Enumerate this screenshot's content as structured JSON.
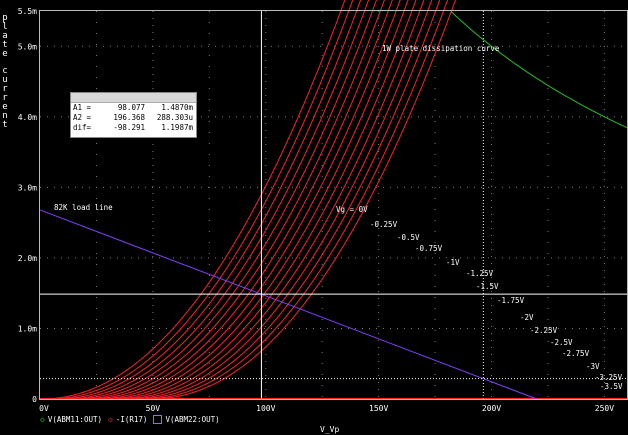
{
  "chart_data": {
    "type": "line",
    "xlabel": "V_Vp",
    "ylabel": "plate current",
    "xlim": [
      0,
      260
    ],
    "ylim": [
      0,
      5.5
    ],
    "y_unit": "mA",
    "x_ticks": [
      "0V",
      "50V",
      "100V",
      "150V",
      "200V",
      "250V"
    ],
    "y_ticks": [
      "0",
      "1.0m",
      "2.0m",
      "3.0m",
      "4.0m",
      "5.0m",
      "5.5m"
    ],
    "grid": "dotted",
    "curve_params": {
      "k": 0.0001995,
      "exp": 2.09,
      "vg_scale": 14
    },
    "grid_curves": [
      {
        "vg": "Vg = 0V",
        "vg_value": 0
      },
      {
        "vg": "-0.25V",
        "vg_value": -0.25
      },
      {
        "vg": "-0.5V",
        "vg_value": -0.5
      },
      {
        "vg": "-0.75V",
        "vg_value": -0.75
      },
      {
        "vg": "-1V",
        "vg_value": -1
      },
      {
        "vg": "-1.25V",
        "vg_value": -1.25
      },
      {
        "vg": "-1.5V",
        "vg_value": -1.5
      },
      {
        "vg": "-1.75V",
        "vg_value": -1.75
      },
      {
        "vg": "-2V",
        "vg_value": -2
      },
      {
        "vg": "-2.25V",
        "vg_value": -2.25
      },
      {
        "vg": "-2.5V",
        "vg_value": -2.5
      },
      {
        "vg": "-2.75V",
        "vg_value": -2.75
      },
      {
        "vg": "-3V",
        "vg_value": -3
      },
      {
        "vg": "-3.25V",
        "vg_value": -3.25
      },
      {
        "vg": "-3.5V",
        "vg_value": -3.5
      }
    ],
    "load_line": {
      "name": "82K load line",
      "x": [
        0,
        220
      ],
      "y": [
        2.68,
        0
      ],
      "color": "#8040ff"
    },
    "dissipation_curve": {
      "name": "1W plate dissipation curve",
      "power_w": 1,
      "x_range": [
        181,
        260
      ],
      "color": "#20c020"
    },
    "cursors": {
      "x": [
        98.077,
        196.368
      ],
      "y": [
        1.487,
        0.288303
      ]
    },
    "colors": {
      "curves": "#ff2020",
      "grid": "#7a7a7a",
      "cursor": "#ffffff",
      "bg": "#000000"
    }
  },
  "cursor_table": [
    {
      "name": "A1 =",
      "x": "98.077",
      "y": "1.4870m"
    },
    {
      "name": "A2 =",
      "x": "196.368",
      "y": "288.303u"
    },
    {
      "name": "dif=",
      "x": "-98.291",
      "y": "1.1987m"
    }
  ],
  "legend": [
    {
      "marker": "◇",
      "color": "#20c020",
      "label": "V(ABM11:OUT)"
    },
    {
      "marker": "◇",
      "color": "#ff2020",
      "label": "-I(R17)"
    },
    {
      "marker": "□",
      "color": "#a060ff",
      "label": "V(ABM22:OUT)"
    }
  ]
}
